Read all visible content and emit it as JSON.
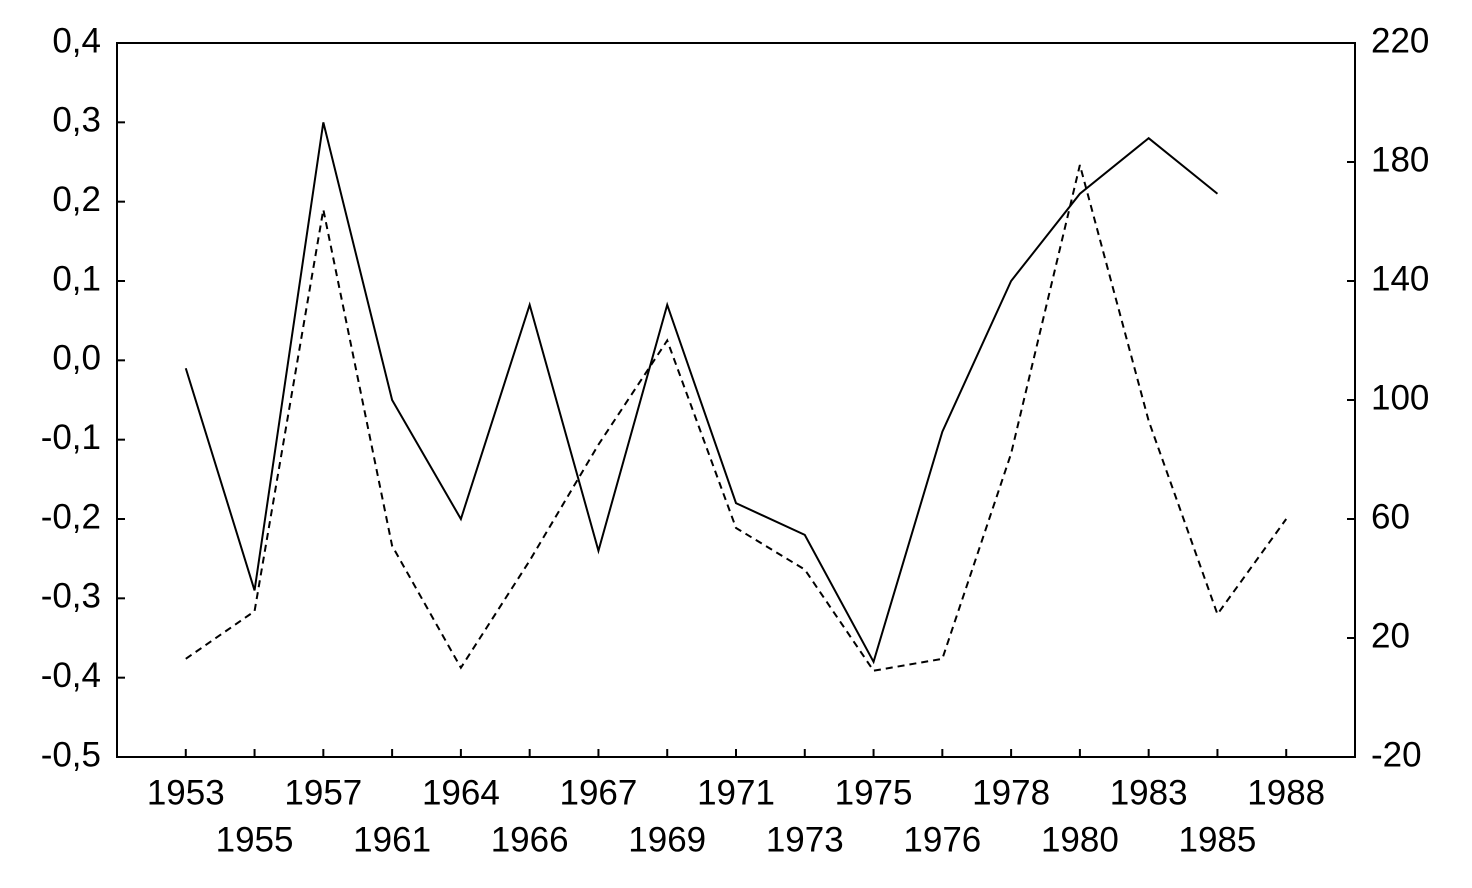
{
  "chart_data": {
    "type": "line",
    "categories": [
      "1953",
      "1955",
      "1957",
      "1961",
      "1964",
      "1966",
      "1967",
      "1969",
      "1971",
      "1973",
      "1975",
      "1976",
      "1978",
      "1980",
      "1983",
      "1985",
      "1988"
    ],
    "series": [
      {
        "color": "#000000",
        "dash": "solid",
        "values": [
          -0.01,
          -0.29,
          0.3,
          -0.05,
          -0.2,
          0.07,
          -0.24,
          0.07,
          -0.18,
          -0.22,
          -0.38,
          -0.09,
          0.1,
          0.21,
          0.28,
          0.21,
          null
        ]
      },
      {
        "color": "#000000",
        "dash": "dashed",
        "axis": "y2",
        "values": [
          13,
          29,
          164,
          51,
          10,
          46,
          85,
          120,
          57,
          43,
          9,
          13,
          82,
          179,
          93,
          28,
          60
        ]
      }
    ],
    "ylim": [
      -0.5,
      0.4
    ],
    "yticks": [
      {
        "value": -0.5,
        "label": "-0,5"
      },
      {
        "value": -0.4,
        "label": "-0,4"
      },
      {
        "value": -0.3,
        "label": "-0,3"
      },
      {
        "value": -0.2,
        "label": "-0,2"
      },
      {
        "value": -0.1,
        "label": "-0,1"
      },
      {
        "value": 0,
        "label": "0,0"
      },
      {
        "value": 0.1,
        "label": "0,1"
      },
      {
        "value": 0.2,
        "label": "0,2"
      },
      {
        "value": 0.3,
        "label": "0,3"
      },
      {
        "value": 0.4,
        "label": "0,4"
      }
    ],
    "y2lim": [
      -20,
      220
    ],
    "y2ticks": [
      -20,
      20,
      60,
      100,
      140,
      180,
      220
    ],
    "grid": false
  }
}
